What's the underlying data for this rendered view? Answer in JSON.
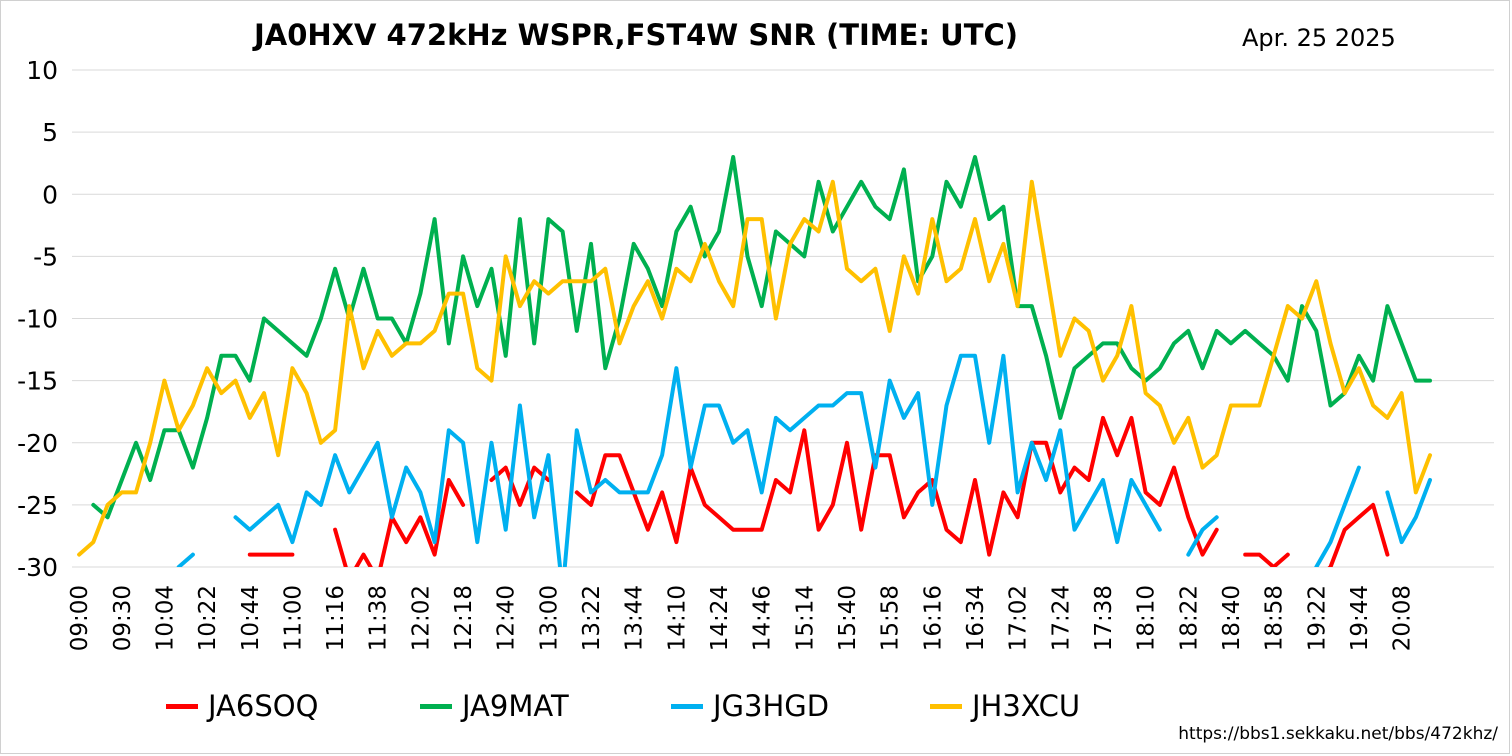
{
  "chart_data": {
    "type": "line",
    "title": "JA0HXV 472kHz WSPR,FST4W SNR (TIME: UTC)",
    "date": "Apr. 25 2025",
    "source": "https://bbs1.sekkaku.net/bbs/472khz/",
    "ylim": [
      -30,
      10
    ],
    "yticks": [
      10,
      5,
      0,
      -5,
      -10,
      -15,
      -20,
      -25,
      -30
    ],
    "grid": true,
    "legend_position": "bottom",
    "x_count": 100,
    "xtick_labels": [
      {
        "i": 0,
        "label": "09:00"
      },
      {
        "i": 3,
        "label": "09:30"
      },
      {
        "i": 6,
        "label": "10:04"
      },
      {
        "i": 9,
        "label": "10:22"
      },
      {
        "i": 12,
        "label": "10:44"
      },
      {
        "i": 15,
        "label": "11:00"
      },
      {
        "i": 18,
        "label": "11:16"
      },
      {
        "i": 21,
        "label": "11:38"
      },
      {
        "i": 24,
        "label": "12:02"
      },
      {
        "i": 27,
        "label": "12:18"
      },
      {
        "i": 30,
        "label": "12:40"
      },
      {
        "i": 33,
        "label": "13:00"
      },
      {
        "i": 36,
        "label": "13:22"
      },
      {
        "i": 39,
        "label": "13:44"
      },
      {
        "i": 42,
        "label": "14:10"
      },
      {
        "i": 45,
        "label": "14:24"
      },
      {
        "i": 48,
        "label": "14:46"
      },
      {
        "i": 51,
        "label": "15:14"
      },
      {
        "i": 54,
        "label": "15:40"
      },
      {
        "i": 57,
        "label": "15:58"
      },
      {
        "i": 60,
        "label": "16:16"
      },
      {
        "i": 63,
        "label": "16:34"
      },
      {
        "i": 66,
        "label": "17:02"
      },
      {
        "i": 69,
        "label": "17:24"
      },
      {
        "i": 72,
        "label": "17:38"
      },
      {
        "i": 75,
        "label": "18:10"
      },
      {
        "i": 78,
        "label": "18:22"
      },
      {
        "i": 81,
        "label": "18:40"
      },
      {
        "i": 84,
        "label": "18:58"
      },
      {
        "i": 87,
        "label": "19:22"
      },
      {
        "i": 90,
        "label": "19:44"
      },
      {
        "i": 93,
        "label": "20:08"
      }
    ],
    "series": [
      {
        "name": "JA6SOQ",
        "color": "#ff0000",
        "values": [
          null,
          null,
          null,
          null,
          null,
          null,
          null,
          null,
          null,
          null,
          null,
          null,
          -29,
          -29,
          -29,
          -29,
          null,
          null,
          -27,
          -31,
          -29,
          -31,
          -26,
          -28,
          -26,
          -29,
          -23,
          -25,
          null,
          -23,
          -22,
          -25,
          -22,
          -23,
          null,
          -24,
          -25,
          -21,
          -21,
          -24,
          -27,
          -24,
          -28,
          -22,
          -25,
          -26,
          -27,
          -27,
          -27,
          -23,
          -24,
          -19,
          -27,
          -25,
          -20,
          -27,
          -21,
          -21,
          -26,
          -24,
          -23,
          -27,
          -28,
          -23,
          -29,
          -24,
          -26,
          -20,
          -20,
          -24,
          -22,
          -23,
          -18,
          -21,
          -18,
          -24,
          -25,
          -22,
          -26,
          -29,
          -27,
          null,
          -29,
          -29,
          -30,
          -29,
          null,
          -31,
          -30,
          -27,
          -26,
          -25,
          -29,
          null,
          null,
          null,
          null,
          null,
          null,
          null
        ]
      },
      {
        "name": "JA9MAT",
        "color": "#00b050",
        "values": [
          null,
          -25,
          -26,
          -23,
          -20,
          -23,
          -19,
          -19,
          -22,
          -18,
          -13,
          -13,
          -15,
          -10,
          -11,
          -12,
          -13,
          -10,
          -6,
          -10,
          -6,
          -10,
          -10,
          -12,
          -8,
          -2,
          -12,
          -5,
          -9,
          -6,
          -13,
          -2,
          -12,
          -2,
          -3,
          -11,
          -4,
          -14,
          -10,
          -4,
          -6,
          -9,
          -3,
          -1,
          -5,
          -3,
          3,
          -5,
          -9,
          -3,
          -4,
          -5,
          1,
          -3,
          -1,
          1,
          -1,
          -2,
          2,
          -7,
          -5,
          1,
          -1,
          3,
          -2,
          -1,
          -9,
          -9,
          -13,
          -18,
          -14,
          -13,
          -12,
          -12,
          -14,
          -15,
          -14,
          -12,
          -11,
          -14,
          -11,
          -12,
          -11,
          -12,
          -13,
          -15,
          -9,
          -11,
          -17,
          -16,
          -13,
          -15,
          -9,
          -12,
          -15,
          -15,
          null,
          null,
          null,
          null
        ]
      },
      {
        "name": "JG3HGD",
        "color": "#00b0f0",
        "values": [
          null,
          null,
          null,
          null,
          null,
          null,
          null,
          -30,
          -29,
          null,
          null,
          -26,
          -27,
          -26,
          -25,
          -28,
          -24,
          -25,
          -21,
          -24,
          -22,
          -20,
          -26,
          -22,
          -24,
          -28,
          -19,
          -20,
          -28,
          -20,
          -27,
          -17,
          -26,
          -21,
          -32,
          -19,
          -24,
          -23,
          -24,
          -24,
          -24,
          -21,
          -14,
          -22,
          -17,
          -17,
          -20,
          -19,
          -24,
          -18,
          -19,
          -18,
          -17,
          -17,
          -16,
          -16,
          -22,
          -15,
          -18,
          -16,
          -25,
          -17,
          -13,
          -13,
          -20,
          -13,
          -24,
          -20,
          -23,
          -19,
          -27,
          -25,
          -23,
          -28,
          -23,
          -25,
          -27,
          null,
          -29,
          -27,
          -26,
          null,
          null,
          null,
          null,
          null,
          null,
          -30,
          -28,
          -25,
          -22,
          null,
          -24,
          -28,
          -26,
          -23,
          null,
          null,
          null,
          null
        ]
      },
      {
        "name": "JH3XCU",
        "color": "#ffc000",
        "values": [
          -29,
          -28,
          -25,
          -24,
          -24,
          -20,
          -15,
          -19,
          -17,
          -14,
          -16,
          -15,
          -18,
          -16,
          -21,
          -14,
          -16,
          -20,
          -19,
          -9,
          -14,
          -11,
          -13,
          -12,
          -12,
          -11,
          -8,
          -8,
          -14,
          -15,
          -5,
          -9,
          -7,
          -8,
          -7,
          -7,
          -7,
          -6,
          -12,
          -9,
          -7,
          -10,
          -6,
          -7,
          -4,
          -7,
          -9,
          -2,
          -2,
          -10,
          -4,
          -2,
          -3,
          1,
          -6,
          -7,
          -6,
          -11,
          -5,
          -8,
          -2,
          -7,
          -6,
          -2,
          -7,
          -4,
          -9,
          1,
          -6,
          -13,
          -10,
          -11,
          -15,
          -13,
          -9,
          -16,
          -17,
          -20,
          -18,
          -22,
          -21,
          -17,
          -17,
          -17,
          -13,
          -9,
          -10,
          -7,
          -12,
          -16,
          -14,
          -17,
          -18,
          -16,
          -24,
          -21,
          null,
          null,
          null,
          null
        ]
      }
    ]
  }
}
